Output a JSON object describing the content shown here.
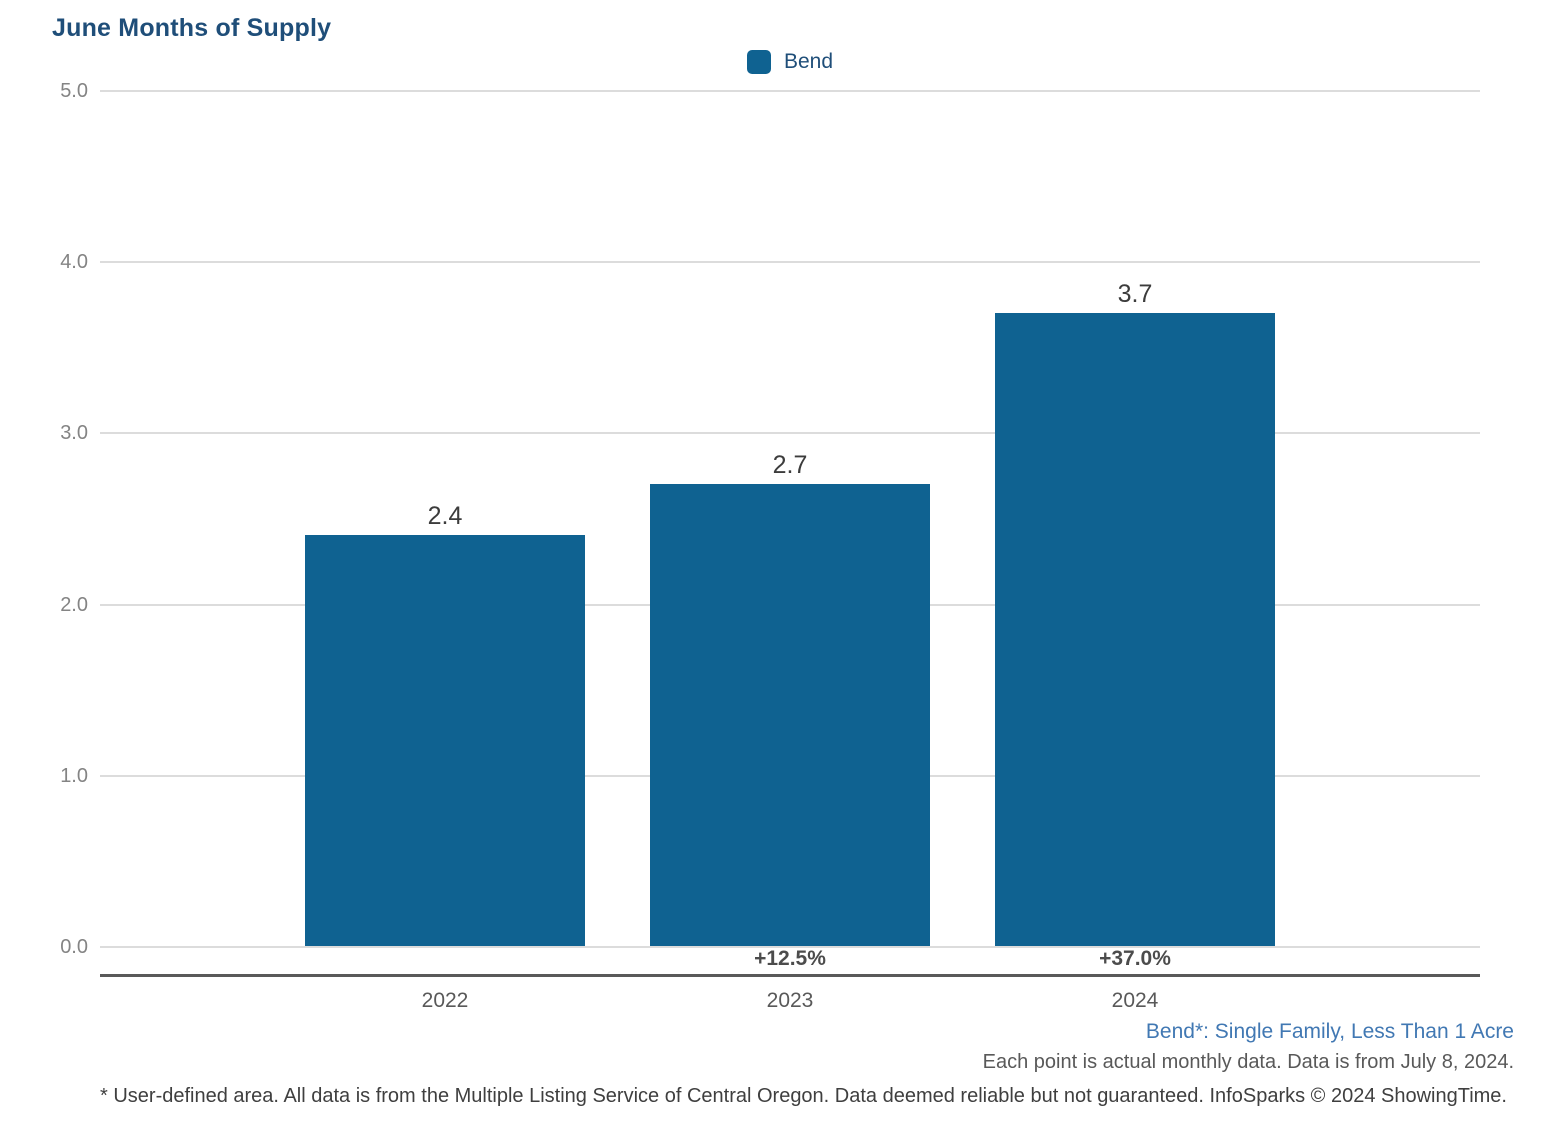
{
  "title": "June Months of Supply",
  "legend": {
    "label": "Bend",
    "swatch_color": "#0f6291"
  },
  "chart_data": {
    "type": "bar",
    "title": "June Months of Supply",
    "categories": [
      "2022",
      "2023",
      "2024"
    ],
    "series": [
      {
        "name": "Bend",
        "values": [
          2.4,
          2.7,
          3.7
        ]
      }
    ],
    "value_labels": [
      "2.4",
      "2.7",
      "3.7"
    ],
    "pct_change_labels": [
      "",
      "+12.5%",
      "+37.0%"
    ],
    "xlabel": "",
    "ylabel": "",
    "ylim": [
      0,
      5
    ],
    "ytick_labels": [
      "5.0",
      "4.0",
      "3.0",
      "2.0",
      "1.0",
      "0.0"
    ],
    "ytick_values": [
      5.0,
      4.0,
      3.0,
      2.0,
      1.0,
      0.0
    ],
    "grid": "horizontal",
    "legend_position": "top-center",
    "bar_color": "#0f6291"
  },
  "colors": {
    "bar": "#0f6291",
    "title_text": "#1f4e79",
    "legend_text": "#1f4e79",
    "gridline": "#dcdcdc",
    "axis_line": "#595959",
    "value_label": "#3c3c3c",
    "pct_label": "#4c4c4c",
    "tick_label": "#848484",
    "footnote_series": "#4178b3",
    "footnote_gray": "#595959"
  },
  "footnotes": {
    "series_note": "Bend*: Single Family, Less Than 1 Acre",
    "data_note": "Each point is actual monthly data. Data is from July 8, 2024.",
    "disclaimer": "* User-defined area. All data is from the Multiple Listing Service of Central Oregon. Data deemed reliable but not guaranteed. InfoSparks © 2024 ShowingTime."
  }
}
